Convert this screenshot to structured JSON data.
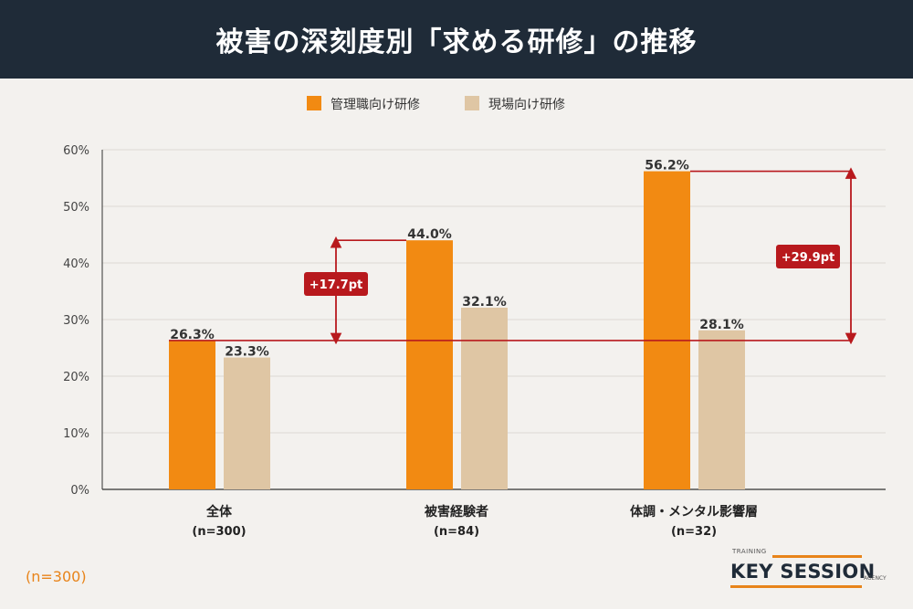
{
  "header": {
    "title": "被害の深刻度別「求める研修」の推移"
  },
  "footnote": "(n=300)",
  "logo": {
    "top": "TRAINING",
    "main": "KEY SESSION",
    "suffix": "AGENCY"
  },
  "colors": {
    "series1": "#f28a12",
    "series2": "#dfc6a4",
    "arrow": "#b8191d",
    "header_bg": "#1f2b38"
  },
  "chart_data": {
    "type": "bar",
    "categories": [
      {
        "name": "全体",
        "n": "(n=300)"
      },
      {
        "name": "被害経験者",
        "n": "(n=84)"
      },
      {
        "name": "体調・メンタル影響層",
        "n": "(n=32)"
      }
    ],
    "series": [
      {
        "name": "管理職向け研修",
        "values": [
          26.3,
          44.0,
          56.2
        ],
        "labels": [
          "26.3%",
          "44.0%",
          "56.2%"
        ]
      },
      {
        "name": "現場向け研修",
        "values": [
          23.3,
          32.1,
          28.1
        ],
        "labels": [
          "23.3%",
          "32.1%",
          "28.1%"
        ]
      }
    ],
    "ylim": [
      0,
      60
    ],
    "yticks": [
      "0%",
      "10%",
      "20%",
      "30%",
      "40%",
      "50%",
      "60%"
    ],
    "grid": true,
    "legend": "top-center",
    "annotations": [
      {
        "label": "+17.7pt",
        "from": 26.3,
        "to": 44.0
      },
      {
        "label": "+29.9pt",
        "from": 26.3,
        "to": 56.2
      }
    ]
  }
}
